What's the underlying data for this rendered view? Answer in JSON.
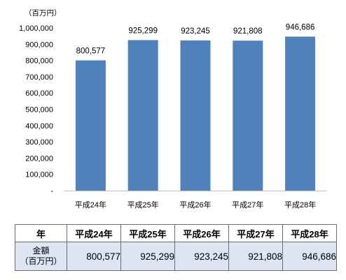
{
  "chart_data": {
    "type": "bar",
    "unit_label": "（百万円）",
    "categories": [
      "平成24年",
      "平成25年",
      "平成26年",
      "平成27年",
      "平成28年"
    ],
    "values": [
      800577,
      925299,
      923245,
      921808,
      946686
    ],
    "value_labels": [
      "800,577",
      "925,299",
      "923,245",
      "921,808",
      "946,686"
    ],
    "ylim": [
      0,
      1000000
    ],
    "yticks": [
      "-",
      "100,000",
      "200,000",
      "300,000",
      "400,000",
      "500,000",
      "600,000",
      "700,000",
      "800,000",
      "900,000",
      "1,000,000"
    ],
    "grid": false,
    "bar_color": "#4f81bd"
  },
  "table": {
    "header_label": "年",
    "columns": [
      "平成24年",
      "平成25年",
      "平成26年",
      "平成27年",
      "平成28年"
    ],
    "row_label_line1": "金額",
    "row_label_line2": "（百万円）",
    "values": [
      "800,577",
      "925,299",
      "923,245",
      "921,808",
      "946,686"
    ],
    "row_color": "#dbe5f4"
  }
}
